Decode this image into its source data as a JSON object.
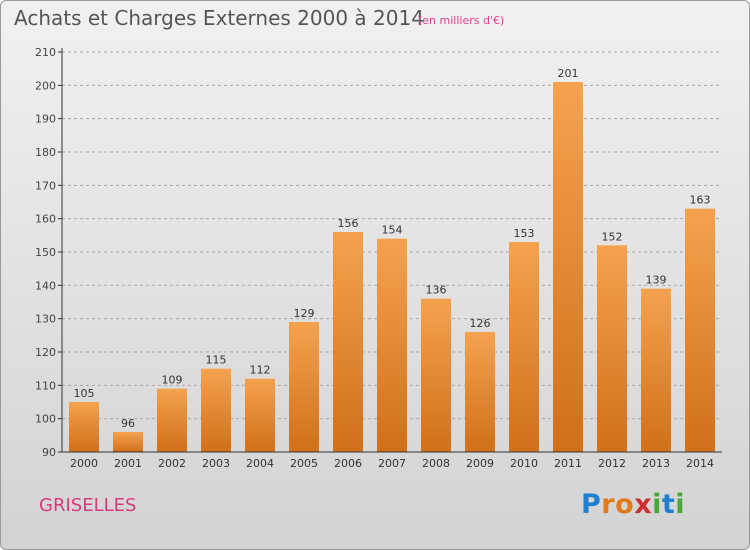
{
  "header": {
    "title": "Achats et Charges Externes 2000 à 2014",
    "subtitle": "(en milliers d'€)"
  },
  "footer": {
    "town": "GRISELLES",
    "logo": {
      "text": "Proxiti",
      "letters": [
        {
          "ch": "P",
          "color": "#1f7fd0"
        },
        {
          "ch": "r",
          "color": "#e07a1a"
        },
        {
          "ch": "o",
          "color": "#e07a1a"
        },
        {
          "ch": "x",
          "color": "#cc2f2f"
        },
        {
          "ch": "i",
          "color": "#4aa83a"
        },
        {
          "ch": "t",
          "color": "#1f7fd0"
        },
        {
          "ch": "i",
          "color": "#4aa83a"
        }
      ]
    }
  },
  "colors": {
    "bar_light": "#f5a24f",
    "bar_dark": "#d07018",
    "grid": "#a8a8a8",
    "axis": "#333333"
  },
  "chart_data": {
    "type": "bar",
    "categories": [
      "2000",
      "2001",
      "2002",
      "2003",
      "2004",
      "2005",
      "2006",
      "2007",
      "2008",
      "2009",
      "2010",
      "2011",
      "2012",
      "2013",
      "2014"
    ],
    "values": [
      105,
      96,
      109,
      115,
      112,
      129,
      156,
      154,
      136,
      126,
      153,
      201,
      152,
      139,
      163
    ],
    "ylim": [
      90,
      210
    ],
    "yticks": [
      90,
      100,
      110,
      120,
      130,
      140,
      150,
      160,
      170,
      180,
      190,
      200,
      210
    ],
    "grid": true,
    "data_labels": true
  }
}
